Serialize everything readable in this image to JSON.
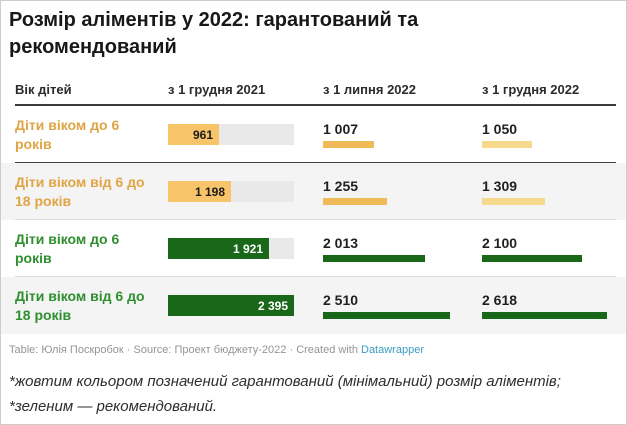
{
  "title": "Розмір аліментів у 2022: гарантований та рекомендований",
  "colors": {
    "yellow_label": "#dfa544",
    "yellow_bar_big": "#f7c469",
    "yellow_bar_mid": "#f0bb57",
    "yellow_bar_light": "#f6d98c",
    "green_label": "#2f8f2f",
    "green_bar": "#196719",
    "bar_value_dark": "#1a1a1a",
    "bar_value_light": "#ffffff",
    "track": "#e9e9e9",
    "row_alt_bg": "#f4f4f4",
    "link_blue": "#3b9dc4"
  },
  "chart_data": {
    "type": "table",
    "title": "Розмір аліментів у 2022: гарантований та рекомендований",
    "columns": [
      "Вік дітей",
      "з 1 грудня 2021",
      "з 1 липня 2022",
      "з 1 грудня 2022"
    ],
    "column_max": [
      2395,
      2510,
      2618
    ],
    "rows": [
      {
        "label": "Діти віком до 6 років",
        "color": "yellow",
        "group": "гарантований (мінімальний)",
        "values": [
          961,
          1007,
          1050
        ]
      },
      {
        "label": "Діти віком від 6 до 18 років",
        "color": "yellow",
        "group": "гарантований (мінімальний)",
        "values": [
          1198,
          1255,
          1309
        ]
      },
      {
        "label": "Діти віком до 6 років",
        "color": "green",
        "group": "рекомендований",
        "values": [
          1921,
          2013,
          2100
        ]
      },
      {
        "label": "Діти віком від 6 до 18 років",
        "color": "green",
        "group": "рекомендований",
        "values": [
          2395,
          2510,
          2618
        ]
      }
    ]
  },
  "footer": {
    "table_label": "Table: ",
    "author": "Юлія Поскробок",
    "sep1": " · ",
    "source_label": "Source: ",
    "source": "Проект бюджету-2022",
    "sep2": " · ",
    "created_with": "Created with ",
    "tool": "Datawrapper"
  },
  "footnote": {
    "line1": "*жовтим кольором позначений гарантований (мінімальний) розмір аліментів;",
    "line2": "*зеленим — рекомендований."
  }
}
